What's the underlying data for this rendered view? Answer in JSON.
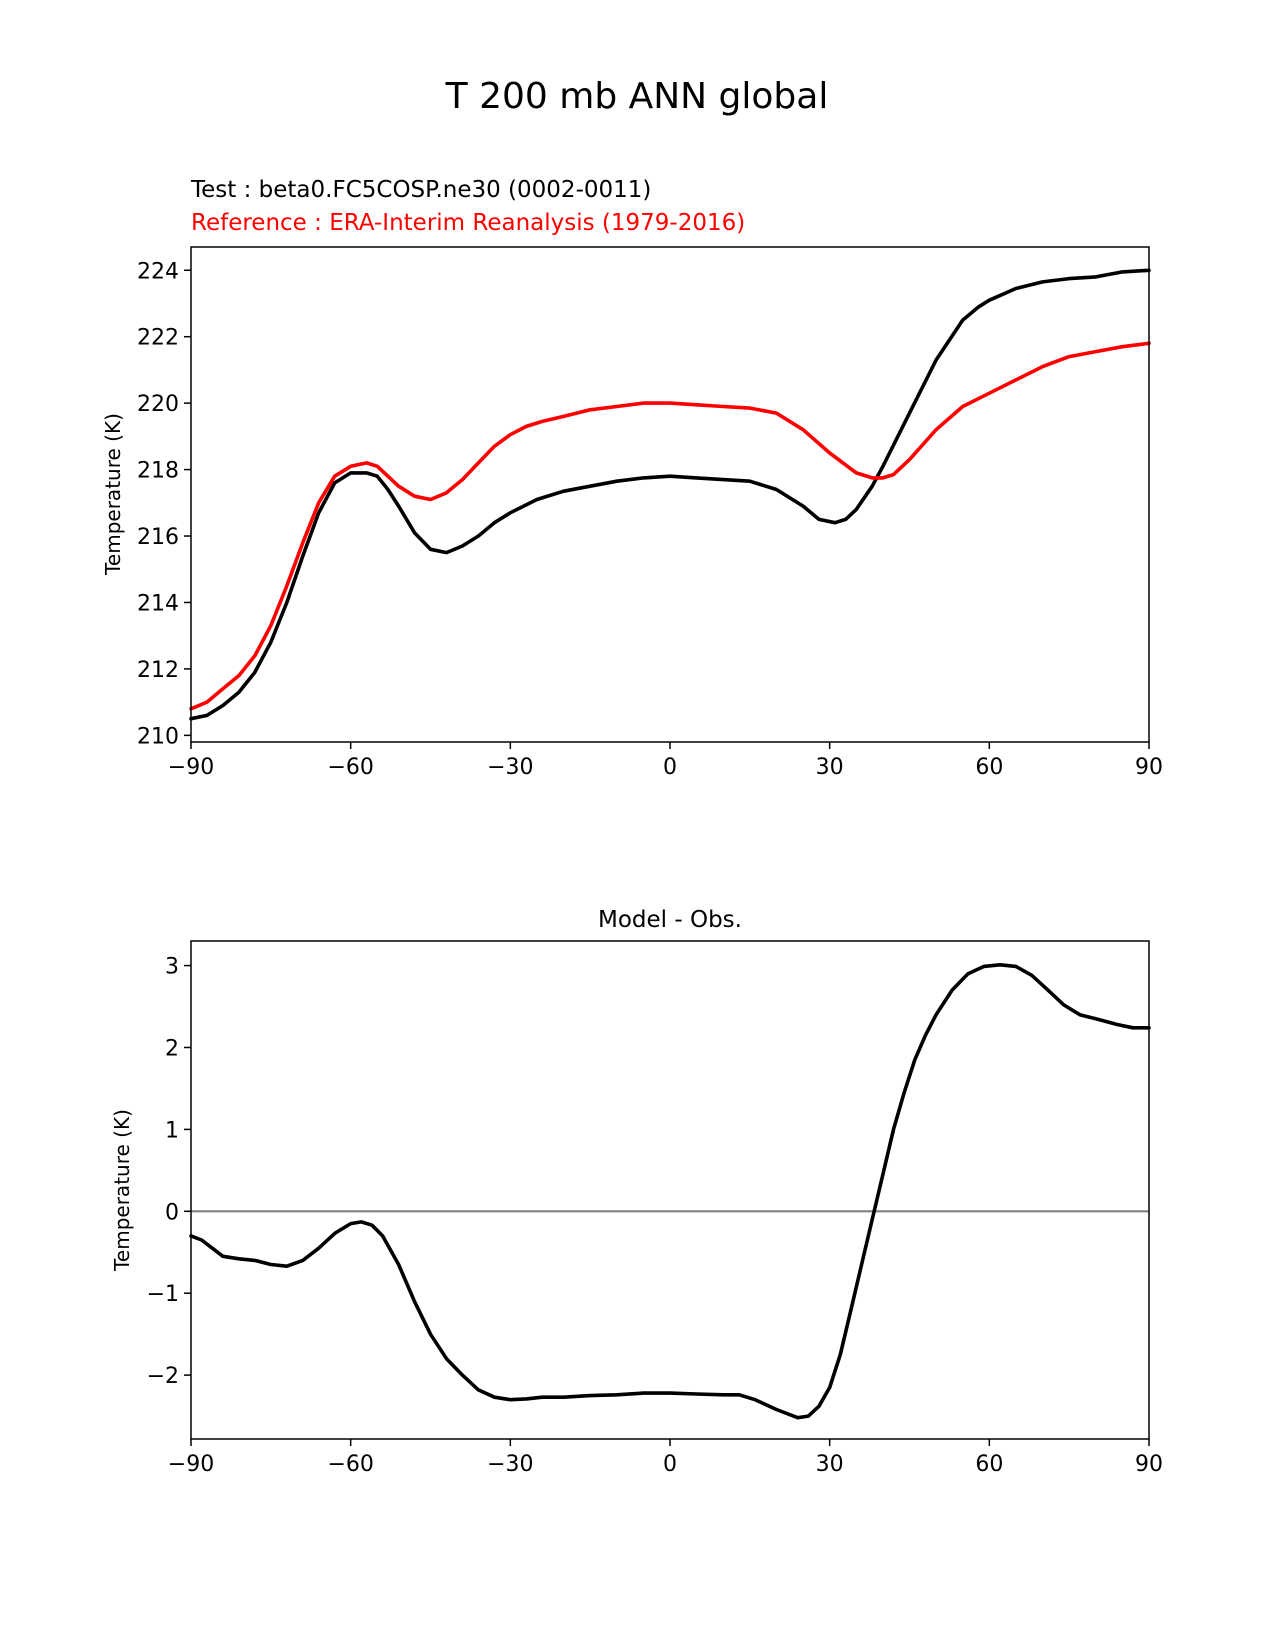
{
  "figure": {
    "title": "T 200 mb ANN global"
  },
  "chart_data": [
    {
      "type": "line",
      "test_label": "Test : beta0.FC5COSP.ne30 (0002-0011)",
      "reference_label": "Reference : ERA-Interim Reanalysis (1979-2016)",
      "xlabel": "",
      "ylabel": "Temperature (K)",
      "xlim": [
        -90,
        90
      ],
      "ylim": [
        209.8,
        224.7
      ],
      "xticks": [
        -90,
        -60,
        -30,
        0,
        30,
        60,
        90
      ],
      "xtick_labels": [
        "−90",
        "−60",
        "−30",
        "0",
        "30",
        "60",
        "90"
      ],
      "yticks": [
        210,
        212,
        214,
        216,
        218,
        220,
        222,
        224
      ],
      "ytick_labels": [
        "210",
        "212",
        "214",
        "216",
        "218",
        "220",
        "222",
        "224"
      ],
      "grid": false,
      "series": [
        {
          "role": "test",
          "color": "#000000",
          "x": [
            -90,
            -87,
            -84,
            -81,
            -78,
            -75,
            -72,
            -69,
            -66,
            -63,
            -60,
            -57,
            -55,
            -53,
            -51,
            -48,
            -45,
            -42,
            -39,
            -36,
            -33,
            -30,
            -25,
            -20,
            -15,
            -10,
            -5,
            0,
            5,
            10,
            15,
            20,
            25,
            28,
            31,
            33,
            35,
            38,
            40,
            45,
            50,
            55,
            58,
            60,
            65,
            70,
            75,
            80,
            85,
            90
          ],
          "y": [
            210.5,
            210.6,
            210.9,
            211.3,
            211.9,
            212.8,
            214.0,
            215.4,
            216.7,
            217.6,
            217.9,
            217.9,
            217.8,
            217.4,
            216.9,
            216.1,
            215.6,
            215.5,
            215.7,
            216.0,
            216.4,
            216.7,
            217.1,
            217.35,
            217.5,
            217.65,
            217.75,
            217.8,
            217.75,
            217.7,
            217.65,
            217.4,
            216.9,
            216.5,
            216.4,
            216.5,
            216.8,
            217.5,
            218.1,
            219.7,
            221.3,
            222.5,
            222.9,
            223.1,
            223.45,
            223.65,
            223.75,
            223.8,
            223.95,
            224.0
          ]
        },
        {
          "role": "reference",
          "color": "#ff0000",
          "x": [
            -90,
            -87,
            -84,
            -81,
            -78,
            -75,
            -72,
            -69,
            -66,
            -63,
            -60,
            -57,
            -55,
            -53,
            -51,
            -48,
            -45,
            -42,
            -39,
            -36,
            -33,
            -30,
            -27,
            -24,
            -20,
            -15,
            -10,
            -5,
            0,
            5,
            10,
            15,
            20,
            25,
            30,
            35,
            38,
            40,
            42,
            45,
            50,
            55,
            60,
            65,
            70,
            75,
            80,
            85,
            90
          ],
          "y": [
            210.8,
            211.0,
            211.4,
            211.8,
            212.4,
            213.3,
            214.5,
            215.8,
            217.0,
            217.8,
            218.1,
            218.2,
            218.1,
            217.8,
            217.5,
            217.2,
            217.1,
            217.3,
            217.7,
            218.2,
            218.7,
            219.05,
            219.3,
            219.45,
            219.6,
            219.8,
            219.9,
            220.0,
            220.0,
            219.95,
            219.9,
            219.85,
            219.7,
            219.2,
            218.5,
            217.9,
            217.75,
            217.75,
            217.85,
            218.3,
            219.2,
            219.9,
            220.3,
            220.7,
            221.1,
            221.4,
            221.55,
            221.7,
            221.8
          ]
        }
      ]
    },
    {
      "type": "line",
      "title": "Model - Obs.",
      "xlabel": "",
      "ylabel": "Temperature (K)",
      "xlim": [
        -90,
        90
      ],
      "ylim": [
        -2.78,
        3.3
      ],
      "xticks": [
        -90,
        -60,
        -30,
        0,
        30,
        60,
        90
      ],
      "xtick_labels": [
        "−90",
        "−60",
        "−30",
        "0",
        "30",
        "60",
        "90"
      ],
      "yticks": [
        -2,
        -1,
        0,
        1,
        2,
        3
      ],
      "ytick_labels": [
        "−2",
        "−1",
        "0",
        "1",
        "2",
        "3"
      ],
      "grid": false,
      "zero_line_color": "#808080",
      "series": [
        {
          "role": "difference",
          "color": "#000000",
          "x": [
            -90,
            -88,
            -86,
            -84,
            -81,
            -78,
            -75,
            -72,
            -69,
            -66,
            -63,
            -60,
            -58,
            -56,
            -54,
            -51,
            -48,
            -45,
            -42,
            -39,
            -36,
            -33,
            -30,
            -27,
            -24,
            -20,
            -15,
            -10,
            -5,
            0,
            5,
            10,
            13,
            16,
            20,
            24,
            26,
            28,
            30,
            32,
            34,
            36,
            38,
            40,
            42,
            44,
            46,
            48,
            50,
            53,
            56,
            59,
            62,
            65,
            68,
            71,
            74,
            77,
            80,
            84,
            87,
            90
          ],
          "y": [
            -0.3,
            -0.35,
            -0.45,
            -0.55,
            -0.58,
            -0.6,
            -0.65,
            -0.67,
            -0.6,
            -0.45,
            -0.27,
            -0.15,
            -0.13,
            -0.17,
            -0.3,
            -0.65,
            -1.1,
            -1.5,
            -1.8,
            -2.0,
            -2.18,
            -2.27,
            -2.3,
            -2.29,
            -2.27,
            -2.27,
            -2.25,
            -2.24,
            -2.22,
            -2.22,
            -2.23,
            -2.24,
            -2.24,
            -2.3,
            -2.42,
            -2.52,
            -2.5,
            -2.38,
            -2.15,
            -1.75,
            -1.2,
            -0.65,
            -0.1,
            0.45,
            1.0,
            1.45,
            1.85,
            2.15,
            2.4,
            2.7,
            2.9,
            2.99,
            3.01,
            2.99,
            2.88,
            2.7,
            2.52,
            2.4,
            2.35,
            2.28,
            2.24,
            2.24
          ]
        }
      ]
    }
  ]
}
